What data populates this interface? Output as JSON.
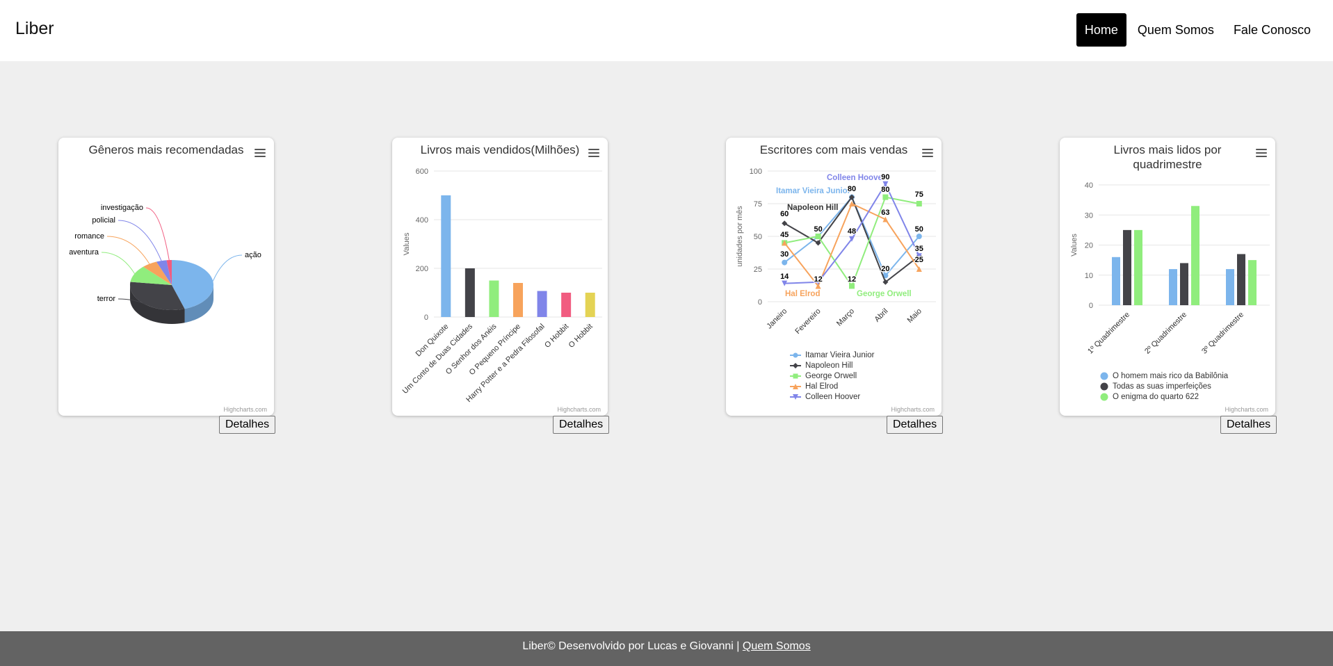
{
  "navbar": {
    "brand": "Liber",
    "items": [
      {
        "label": "Home",
        "active": true
      },
      {
        "label": "Quem Somos",
        "active": false
      },
      {
        "label": "Fale Conosco",
        "active": false
      }
    ]
  },
  "details_label": "Detalhes",
  "credits": "Highcharts.com",
  "footer": {
    "text": "Liber© Desenvolvido por Lucas e Giovanni | ",
    "link": "Quem Somos"
  },
  "chart_data": [
    {
      "type": "pie",
      "title": "Gêneros mais recomendadas",
      "labels": [
        "ação",
        "terror",
        "aventura",
        "romance",
        "policial",
        "investigação"
      ],
      "values": [
        45,
        32,
        11,
        6,
        4,
        2
      ],
      "colors": [
        "#7cb5ec",
        "#434348",
        "#90ed7d",
        "#f7a35c",
        "#8085e9",
        "#f15c80"
      ]
    },
    {
      "type": "bar",
      "title": "Livros mais vendidos(Milhões)",
      "ylabel": "Values",
      "ylim": [
        0,
        600
      ],
      "yticks": [
        0,
        200,
        400,
        600
      ],
      "categories": [
        "Don Quixote",
        "Um Conto de Duas Cidades",
        "O Senhor dos Anéis",
        "O Pequeno Príncipe",
        "Harry Potter e a Pedra Filosofal",
        "O Hobbit",
        "O Hobbit"
      ],
      "values": [
        500,
        200,
        150,
        140,
        107,
        100,
        100
      ],
      "colors": [
        "#7cb5ec",
        "#434348",
        "#90ed7d",
        "#f7a35c",
        "#8085e9",
        "#f15c80",
        "#e4d354"
      ]
    },
    {
      "type": "line",
      "title": "Escritores com mais vendas",
      "ylabel": "unidades por mês",
      "ylim": [
        0,
        100
      ],
      "yticks": [
        0,
        25,
        50,
        75,
        100
      ],
      "categories": [
        "Janeiro",
        "Fevereiro",
        "Março",
        "Abril",
        "Maio"
      ],
      "series": [
        {
          "name": "Itamar Vieira Junior",
          "values": [
            30,
            50,
            80,
            20,
            50
          ],
          "color": "#7cb5ec",
          "marker": "circle"
        },
        {
          "name": "Napoleon Hill",
          "values": [
            60,
            45,
            80,
            15,
            35
          ],
          "color": "#434348",
          "marker": "diamond"
        },
        {
          "name": "George Orwell",
          "values": [
            45,
            50,
            12,
            80,
            75
          ],
          "color": "#90ed7d",
          "marker": "square"
        },
        {
          "name": "Hal Elrod",
          "values": [
            45,
            12,
            75,
            63,
            25
          ],
          "color": "#f7a35c",
          "marker": "triangle"
        },
        {
          "name": "Colleen Hoover",
          "values": [
            14,
            15,
            48,
            90,
            35
          ],
          "color": "#8085e9",
          "marker": "triangle-down"
        }
      ],
      "data_labels": [
        "60",
        "45",
        "30",
        "14",
        "50",
        "12",
        "80",
        "48",
        "12",
        "90",
        "80",
        "63",
        "20",
        "75",
        "50",
        "35",
        "25"
      ]
    },
    {
      "type": "bar",
      "title": "Livros mais lidos por quadrimestre",
      "ylabel": "Values",
      "ylim": [
        0,
        40
      ],
      "yticks": [
        0,
        10,
        20,
        30,
        40
      ],
      "categories": [
        "1º Quadrimestre",
        "2º Quadrimestre",
        "3º Quadrimestre"
      ],
      "series": [
        {
          "name": "O homem mais rico da Babilônia",
          "values": [
            16,
            12,
            12
          ],
          "color": "#7cb5ec"
        },
        {
          "name": "Todas as suas imperfeições",
          "values": [
            25,
            14,
            17
          ],
          "color": "#434348"
        },
        {
          "name": "O enigma do quarto 622",
          "values": [
            25,
            33,
            15
          ],
          "color": "#90ed7d"
        }
      ]
    }
  ]
}
